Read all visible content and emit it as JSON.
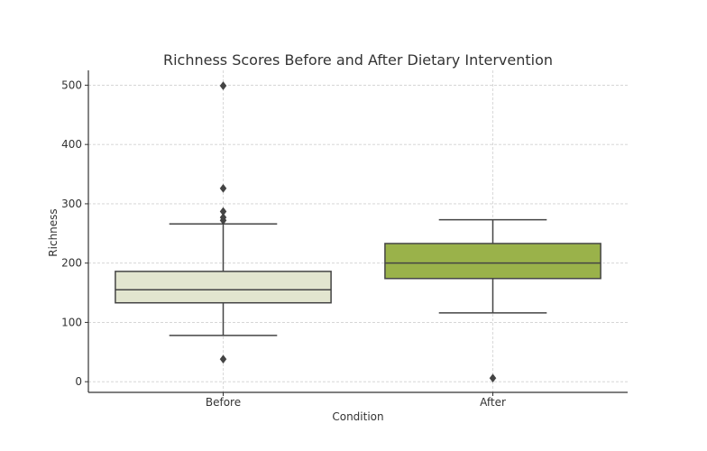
{
  "chart_data": {
    "type": "box",
    "title": "Richness Scores Before and After Dietary Intervention",
    "xlabel": "Condition",
    "ylabel": "Richness",
    "categories": [
      "Before",
      "After"
    ],
    "y_ticks": [
      0,
      100,
      200,
      300,
      400,
      500
    ],
    "ylim": [
      -18,
      525
    ],
    "grid": true,
    "boxes": [
      {
        "name": "Before",
        "whisker_low": 78,
        "q1": 133,
        "median": 155,
        "q3": 186,
        "whisker_high": 266,
        "outliers": [
          38,
          272,
          277,
          287,
          326,
          499
        ],
        "color": "#e2e5cf"
      },
      {
        "name": "After",
        "whisker_low": 116,
        "q1": 174,
        "median": 200,
        "q3": 233,
        "whisker_high": 273,
        "outliers": [
          6
        ],
        "color": "#9ab24a"
      }
    ]
  }
}
